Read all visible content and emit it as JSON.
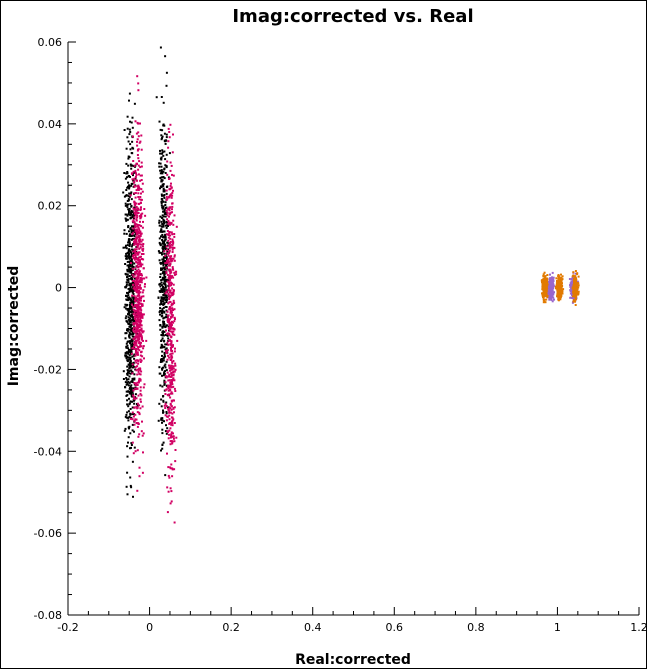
{
  "chart_data": {
    "type": "scatter",
    "title": "Imag:corrected vs. Real",
    "xlabel": "Real:corrected",
    "ylabel": "Imag:corrected",
    "xlim": [
      -0.2,
      1.2
    ],
    "ylim": [
      -0.08,
      0.06
    ],
    "x_ticks": [
      "-0.2",
      "0",
      "0.2",
      "0.4",
      "0.6",
      "0.8",
      "1",
      "1.2"
    ],
    "y_ticks": [
      "-0.08",
      "-0.06",
      "-0.04",
      "-0.02",
      "0",
      "0.02",
      "0.04",
      "0.06"
    ],
    "grid": false,
    "legend": "none",
    "clusters": [
      {
        "color": "#000000",
        "x_center": -0.047,
        "x_spread": 0.012,
        "y_range": [
          -0.058,
          0.055
        ],
        "count": 700
      },
      {
        "color": "#d10063",
        "x_center": -0.028,
        "x_spread": 0.012,
        "y_range": [
          -0.055,
          0.055
        ],
        "count": 700
      },
      {
        "color": "#000000",
        "x_center": 0.035,
        "x_spread": 0.01,
        "y_range": [
          -0.052,
          0.059
        ],
        "count": 500
      },
      {
        "color": "#d10063",
        "x_center": 0.052,
        "x_spread": 0.01,
        "y_range": [
          -0.065,
          0.05
        ],
        "count": 500
      },
      {
        "color": "#e27a00",
        "x_center": 0.97,
        "x_spread": 0.006,
        "y_range": [
          -0.004,
          0.004
        ],
        "count": 250
      },
      {
        "color": "#e27a00",
        "x_center": 1.005,
        "x_spread": 0.006,
        "y_range": [
          -0.004,
          0.004
        ],
        "count": 250
      },
      {
        "color": "#9966cc",
        "x_center": 0.985,
        "x_spread": 0.005,
        "y_range": [
          -0.004,
          0.004
        ],
        "count": 200
      },
      {
        "color": "#9966cc",
        "x_center": 1.04,
        "x_spread": 0.007,
        "y_range": [
          -0.0045,
          0.0045
        ],
        "count": 250
      },
      {
        "color": "#e27a00",
        "x_center": 1.045,
        "x_spread": 0.006,
        "y_range": [
          -0.005,
          0.005
        ],
        "count": 120
      }
    ]
  }
}
